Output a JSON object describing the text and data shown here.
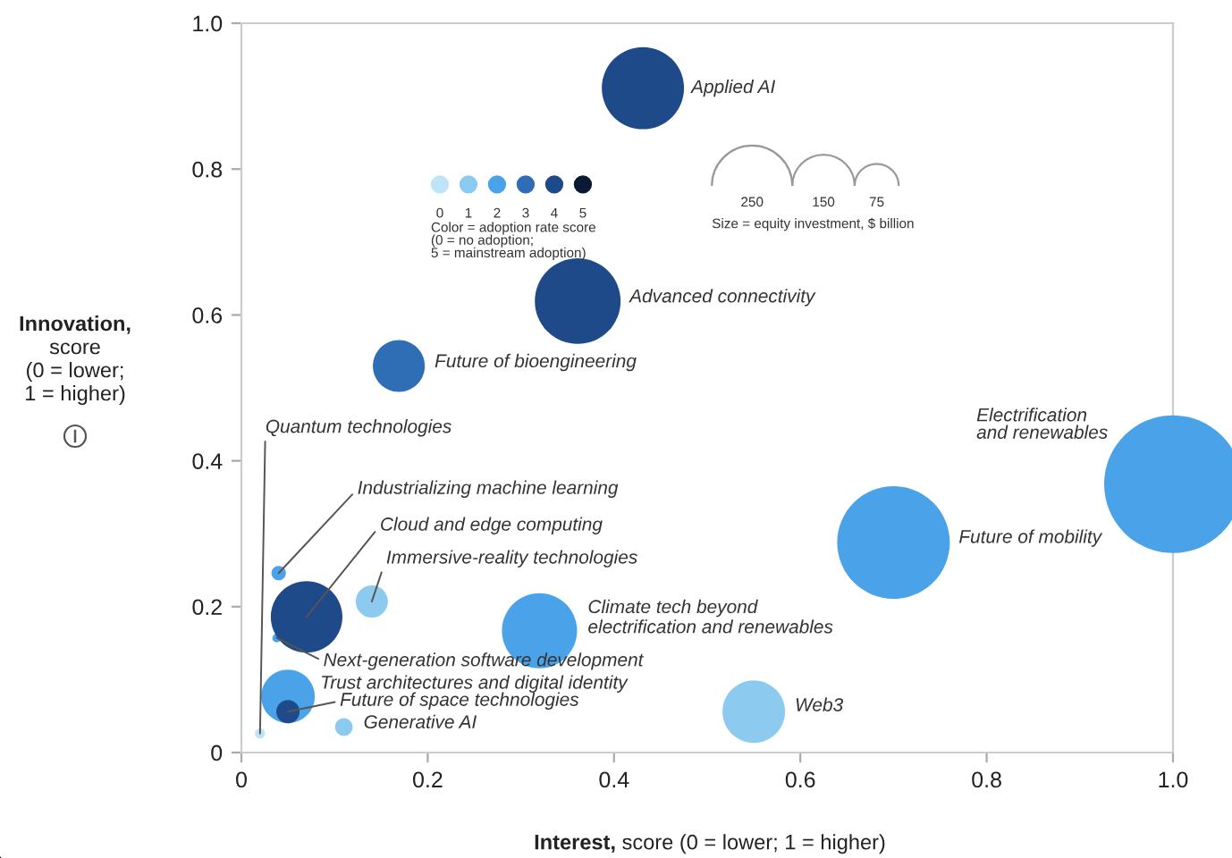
{
  "chart_data": {
    "type": "bubble",
    "xlabel": "Interest, score (0 = lower; 1 = higher)",
    "ylabel": "Innovation,\nscore\n(0 = lower;\n1 = higher)",
    "legend_title": "Color = adoption rate score\n(0 = no adoption;\n5 = mainstream adoption)",
    "legend": "top",
    "size_legend": [
      250,
      150,
      75
    ],
    "xlim": [
      0,
      1.0
    ],
    "ylim": [
      0,
      1.0
    ],
    "xticks": [
      0,
      0.2,
      0.4,
      0.6,
      0.8,
      {
        "value": 1,
        "label": "1.0"
      }
    ],
    "yticks": [
      0,
      0.2,
      0.4,
      0.6,
      0.8,
      {
        "value": 1,
        "label": "1.0"
      }
    ],
    "grid": false,
    "series": [
      {
        "name": "0",
        "color": "#bfe3f7",
        "x": [
          0.02
        ],
        "values": [
          0.026
        ],
        "sizes": [
          4
        ]
      },
      {
        "name": "1",
        "color": "#8ccbef",
        "x": [
          0.55,
          0.14,
          0.11
        ],
        "values": [
          0.056,
          0.207,
          0.035
        ],
        "sizes": [
          151,
          40,
          12
        ]
      },
      {
        "name": "2",
        "color": "#4aa3e8",
        "x": [
          1.0,
          0.7,
          0.32,
          0.04,
          0.038,
          0.05
        ],
        "values": [
          0.368,
          0.288,
          0.167,
          0.246,
          0.157,
          0.077
        ],
        "sizes": [
          732,
          490,
          218,
          8,
          3,
          111
        ]
      },
      {
        "name": "3",
        "color": "#2f6db5",
        "x": [
          0.169
        ],
        "values": [
          0.53
        ],
        "sizes": [
          104
        ]
      },
      {
        "name": "4",
        "color": "#1f4a8a",
        "x": [
          0.431,
          0.361,
          0.07,
          0.05
        ],
        "values": [
          0.911,
          0.619,
          0.186,
          0.056
        ],
        "sizes": [
          261,
          284,
          198,
          21
        ]
      },
      {
        "name": "5",
        "color": "#0b1a33"
      }
    ],
    "annotations": [
      {
        "text": "Applied AI",
        "x": 0.431,
        "y": 0.911
      },
      {
        "text": "Advanced connectivity",
        "x": 0.361,
        "y": 0.619
      },
      {
        "text": "Future of bioengineering",
        "x": 0.169,
        "y": 0.53
      },
      "Electrification\nand renewables",
      "Future of mobility",
      {
        "text": "Climate tech beyond\nelectrification and renewables",
        "x": 0.32,
        "y": 0.167
      },
      {
        "text": "Web3",
        "x": 0.55,
        "y": 0.056
      },
      {
        "text": "Quantum technologies",
        "x": 0.02,
        "y": 0.026
      },
      {
        "text": "Industrializing machine learning",
        "x": 0.04,
        "y": 0.246
      },
      {
        "text": "Cloud and edge computing",
        "x": 0.07,
        "y": 0.186
      },
      {
        "text": "Immersive-reality technologies",
        "x": 0.14,
        "y": 0.207
      },
      {
        "text": "Next-generation software development",
        "x": 0.038,
        "y": 0.157
      },
      {
        "text": "Trust architectures and digital identity",
        "x": 0.05,
        "y": 0.077
      },
      {
        "text": "Future of space technologies",
        "x": 0.05,
        "y": 0.056
      },
      {
        "text": "Generative AI",
        "x": 0.11,
        "y": 0.035
      },
      "Size = equity investment, $ billion"
    ]
  }
}
